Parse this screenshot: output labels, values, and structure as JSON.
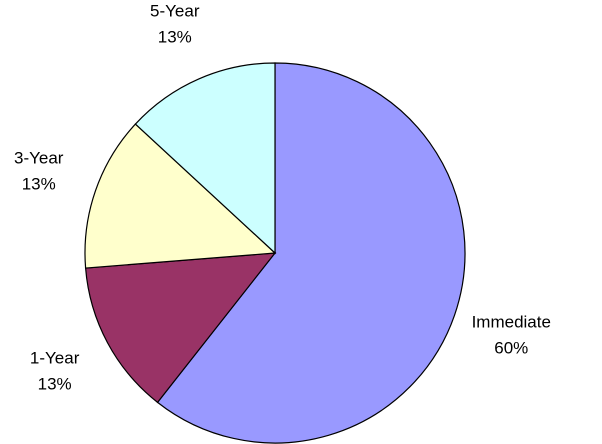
{
  "chart_data": {
    "type": "pie",
    "categories": [
      "Immediate",
      "1-Year",
      "3-Year",
      "5-Year"
    ],
    "values": [
      60,
      13,
      13,
      13
    ],
    "value_labels": [
      "60%",
      "13%",
      "13%",
      "13%"
    ],
    "colors": [
      "#9999ff",
      "#993366",
      "#ffffcc",
      "#ccffff"
    ]
  }
}
